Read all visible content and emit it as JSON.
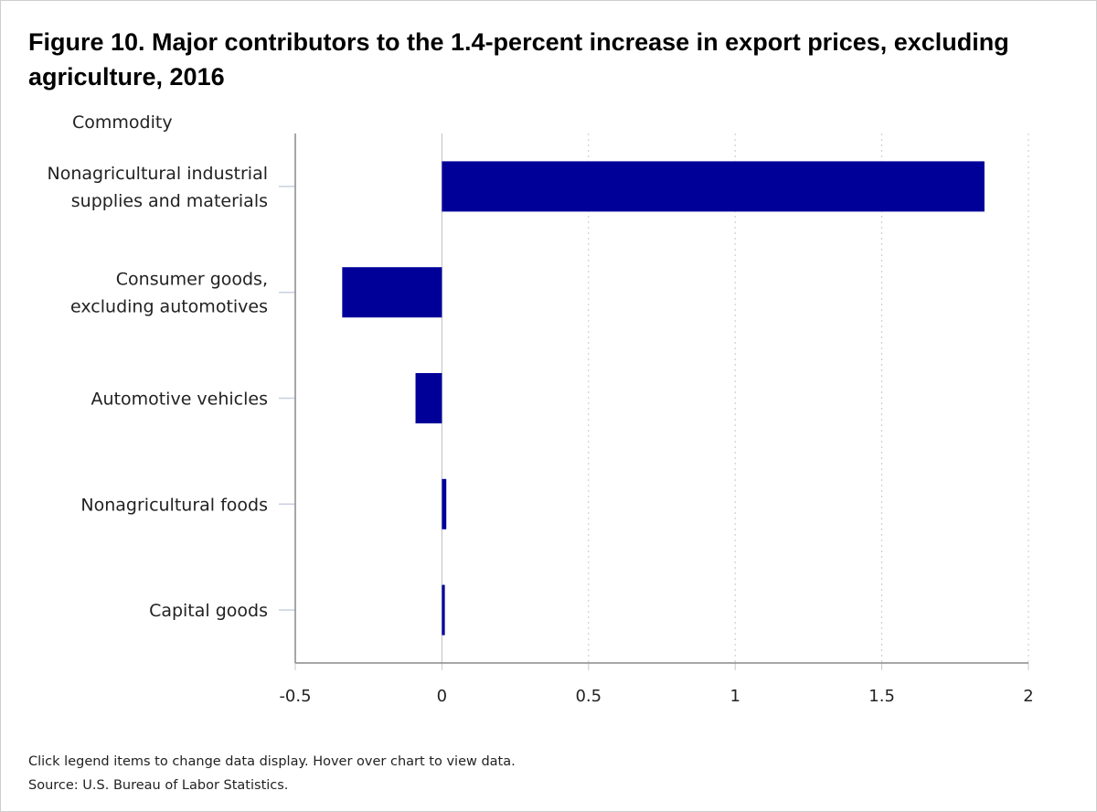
{
  "chart_data": {
    "type": "bar",
    "orientation": "horizontal",
    "title": "Figure 10. Major contributors to the 1.4-percent increase in export prices, excluding agriculture, 2016",
    "ylabel": "Commodity",
    "xlabel": "",
    "categories": [
      [
        "Nonagricultural industrial",
        "supplies and materials"
      ],
      [
        "Consumer goods,",
        "excluding automotives"
      ],
      [
        "Automotive vehicles"
      ],
      [
        "Nonagricultural foods"
      ],
      [
        "Capital goods"
      ]
    ],
    "values": [
      1.85,
      -0.34,
      -0.09,
      0.015,
      0.01
    ],
    "xlim": [
      -0.5,
      2
    ],
    "xticks": [
      "-0.5",
      "0",
      "0.5",
      "1",
      "1.5",
      "2"
    ],
    "grid": true,
    "bar_color": "#000099",
    "legend": "none"
  },
  "footer": {
    "note": "Click legend items to change data display. Hover over chart to view data.",
    "source": "Source: U.S. Bureau of Labor Statistics."
  }
}
